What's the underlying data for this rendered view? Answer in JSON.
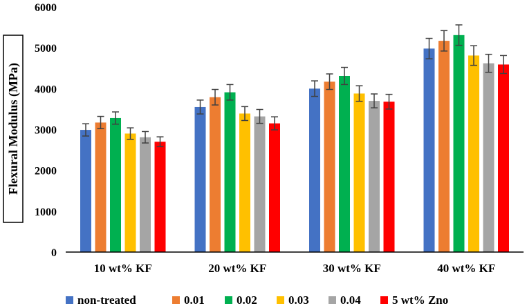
{
  "chart_data": {
    "type": "bar",
    "title": "",
    "xlabel": "",
    "ylabel": "Flexural Modulus (MPa)",
    "ylim": [
      0,
      6000
    ],
    "yticks": [
      0,
      1000,
      2000,
      3000,
      4000,
      5000,
      6000
    ],
    "categories": [
      "10 wt% KF",
      "20 wt% KF",
      "30 wt% KF",
      "40 wt% KF"
    ],
    "series": [
      {
        "name": "non-treated",
        "color": "#4472C4",
        "values": [
          2990,
          3550,
          4000,
          4980
        ],
        "errors": [
          150,
          170,
          190,
          250
        ]
      },
      {
        "name": "0.01",
        "color": "#ED7D31",
        "values": [
          3170,
          3790,
          4170,
          5170
        ],
        "errors": [
          150,
          190,
          190,
          250
        ]
      },
      {
        "name": "0.02",
        "color": "#00B050",
        "values": [
          3280,
          3910,
          4310,
          5310
        ],
        "errors": [
          150,
          190,
          210,
          250
        ]
      },
      {
        "name": "0.03",
        "color": "#FFC000",
        "values": [
          2900,
          3390,
          3880,
          4810
        ],
        "errors": [
          140,
          170,
          190,
          240
        ]
      },
      {
        "name": "0.04",
        "color": "#A5A5A5",
        "values": [
          2810,
          3320,
          3700,
          4620
        ],
        "errors": [
          140,
          170,
          170,
          220
        ]
      },
      {
        "name": "5 wt% Zno",
        "color": "#FF0000",
        "values": [
          2700,
          3150,
          3680,
          4590
        ],
        "errors": [
          120,
          160,
          180,
          220
        ]
      }
    ],
    "grid": false,
    "legend_position": "bottom"
  }
}
